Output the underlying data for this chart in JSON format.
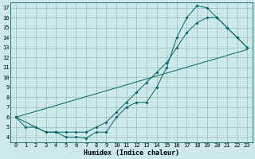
{
  "title": "",
  "xlabel": "Humidex (Indice chaleur)",
  "bg_color": "#cce8e8",
  "line_color": "#006666",
  "grid_color": "#99bbbb",
  "xlim": [
    -0.5,
    23.5
  ],
  "ylim": [
    3.5,
    17.5
  ],
  "xticks": [
    0,
    1,
    2,
    3,
    4,
    5,
    6,
    7,
    8,
    9,
    10,
    11,
    12,
    13,
    14,
    15,
    16,
    17,
    18,
    19,
    20,
    21,
    22,
    23
  ],
  "yticks": [
    4,
    5,
    6,
    7,
    8,
    9,
    10,
    11,
    12,
    13,
    14,
    15,
    16,
    17
  ],
  "line1_x": [
    0,
    1,
    2,
    3,
    4,
    5,
    6,
    7,
    8,
    9,
    10,
    11,
    12,
    13,
    14,
    15,
    16,
    17,
    18,
    19,
    20,
    21,
    22,
    23
  ],
  "line1_y": [
    6.0,
    5.0,
    5.0,
    4.5,
    4.5,
    4.0,
    4.0,
    3.9,
    4.5,
    4.5,
    6.0,
    7.0,
    7.5,
    7.5,
    9.0,
    11.0,
    14.0,
    16.0,
    17.2,
    17.0,
    16.0,
    15.0,
    14.0,
    13.0
  ],
  "line2_x": [
    0,
    3,
    4,
    5,
    6,
    7,
    8,
    9,
    10,
    11,
    12,
    13,
    14,
    15,
    16,
    17,
    18,
    19,
    20,
    21,
    22,
    23
  ],
  "line2_y": [
    6.0,
    4.5,
    4.5,
    4.5,
    4.5,
    4.5,
    5.0,
    5.5,
    6.5,
    7.5,
    8.5,
    9.5,
    10.5,
    11.5,
    13.0,
    14.5,
    15.5,
    16.0,
    16.0,
    15.0,
    14.0,
    13.0
  ],
  "line3_x": [
    0,
    23
  ],
  "line3_y": [
    6.0,
    12.8
  ]
}
